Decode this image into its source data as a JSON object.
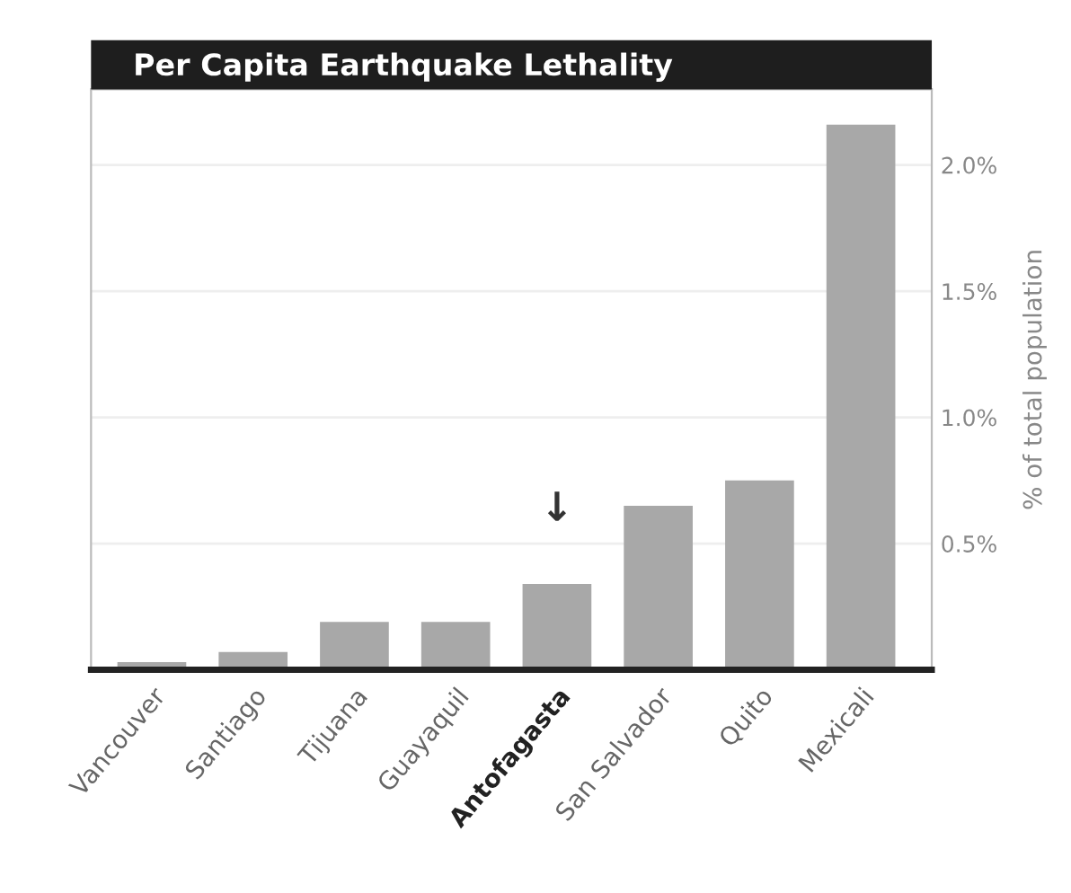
{
  "chart_data": {
    "type": "bar",
    "title": "Per Capita Earthquake Lethality",
    "ylabel": "% of total population",
    "categories": [
      "Vancouver",
      "Santiago",
      "Tijuana",
      "Guayaquil",
      "Antofagasta",
      "San Salvador",
      "Quito",
      "Mexicali"
    ],
    "values": [
      0.03,
      0.07,
      0.19,
      0.19,
      0.34,
      0.65,
      0.75,
      2.16
    ],
    "color": "#a8a8a8",
    "ylim": [
      0,
      2.3
    ],
    "yticks": [
      {
        "value": 0.5,
        "label": "0.5%"
      },
      {
        "value": 1.0,
        "label": "1.0%"
      },
      {
        "value": 1.5,
        "label": "1.5%"
      },
      {
        "value": 2.0,
        "label": "2.0%"
      }
    ],
    "grid": "y",
    "annotations": [
      {
        "text": "↓",
        "x": "Antofagasta",
        "y": 0.34
      }
    ]
  }
}
